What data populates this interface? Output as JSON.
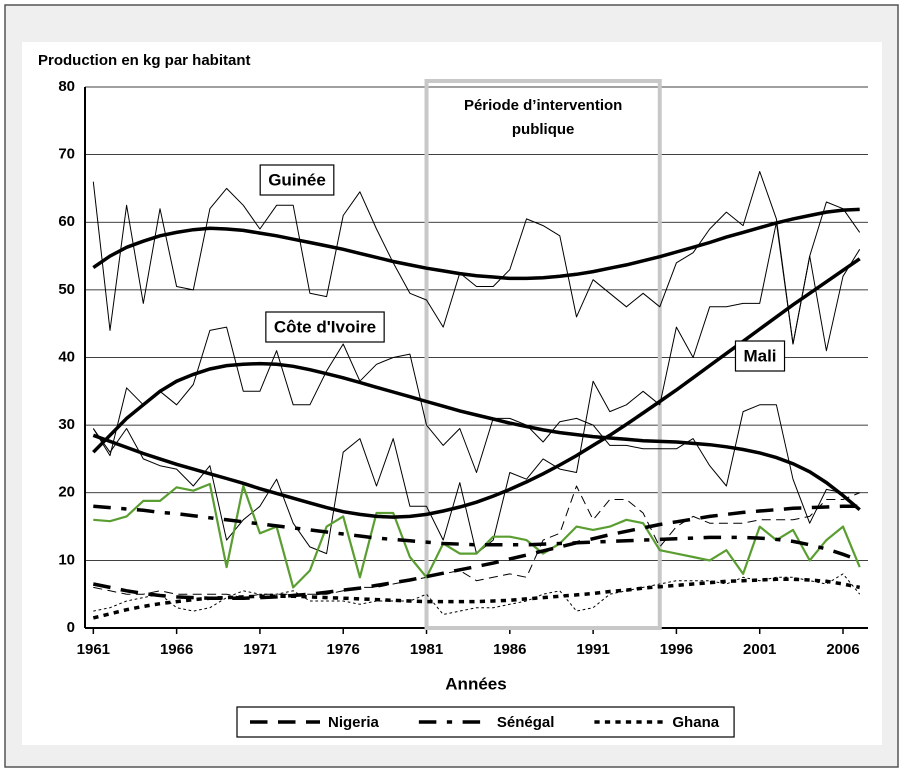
{
  "chart_data": {
    "type": "line",
    "title": "Production en kg par habitant",
    "x_label": "Années",
    "x": [
      1961,
      1962,
      1963,
      1964,
      1965,
      1966,
      1967,
      1968,
      1969,
      1970,
      1971,
      1972,
      1973,
      1974,
      1975,
      1976,
      1977,
      1978,
      1979,
      1980,
      1981,
      1982,
      1983,
      1984,
      1985,
      1986,
      1987,
      1988,
      1989,
      1990,
      1991,
      1992,
      1993,
      1994,
      1995,
      1996,
      1997,
      1998,
      1999,
      2000,
      2001,
      2002,
      2003,
      2004,
      2005,
      2006,
      2007
    ],
    "xlim": [
      1960.5,
      2007.5
    ],
    "xticks": [
      1961,
      1966,
      1971,
      1976,
      1981,
      1986,
      1991,
      1996,
      2001,
      2006
    ],
    "ylim": [
      0,
      80
    ],
    "yticks": [
      0,
      10,
      20,
      30,
      40,
      50,
      60,
      70,
      80
    ],
    "grid": true,
    "period": {
      "start": 1981,
      "end": 1995,
      "label": [
        "Période d’intervention",
        "publique"
      ]
    },
    "series": [
      {
        "name": "Guinée",
        "label_place": "box",
        "color": "#000000",
        "style": "solid",
        "trend_style": "solid",
        "values": [
          66,
          44,
          62.5,
          48,
          62,
          50.5,
          50,
          62,
          65,
          62.5,
          59,
          62.5,
          62.5,
          49.5,
          49,
          61,
          64.5,
          59,
          54,
          49.5,
          48.5,
          44.5,
          52.5,
          50.5,
          50.5,
          53,
          60.5,
          59.5,
          58,
          46,
          51.5,
          49.5,
          47.5,
          49.5,
          47.5,
          54,
          55.5,
          59,
          61.5,
          59.5,
          67.5,
          60.5,
          42,
          55,
          41,
          52,
          56
        ],
        "trend": [
          53.3,
          55,
          56.3,
          57.2,
          58,
          58.5,
          58.9,
          59.1,
          59,
          58.8,
          58.4,
          58,
          57.5,
          57,
          56.5,
          56,
          55.4,
          54.8,
          54.2,
          53.7,
          53.2,
          52.8,
          52.4,
          52.1,
          51.9,
          51.7,
          51.7,
          51.8,
          52,
          52.3,
          52.7,
          53.2,
          53.7,
          54.3,
          54.9,
          55.6,
          56.3,
          57,
          57.8,
          58.5,
          59.2,
          59.9,
          60.5,
          61,
          61.5,
          61.8,
          61.9
        ]
      },
      {
        "name": "Côte d'Ivoire",
        "label_place": "box",
        "color": "#000000",
        "style": "solid",
        "trend_style": "solid",
        "values": [
          29.5,
          25.5,
          35.5,
          33,
          35,
          33,
          36,
          44,
          44.5,
          35,
          35,
          41,
          33,
          33,
          38,
          42,
          36.5,
          39,
          40,
          40.5,
          30,
          27,
          29.5,
          23,
          31,
          31,
          30,
          27.5,
          30.5,
          31,
          30,
          27,
          27,
          26.5,
          26.5,
          26.5,
          28,
          24,
          21,
          32,
          33,
          33,
          22,
          15.5,
          20.5,
          20,
          20
        ],
        "trend": [
          26,
          28.5,
          31,
          33,
          35,
          36.5,
          37.5,
          38.3,
          38.8,
          39,
          39.1,
          39,
          38.7,
          38.2,
          37.6,
          37,
          36.3,
          35.6,
          34.9,
          34.2,
          33.5,
          32.8,
          32.1,
          31.5,
          30.9,
          30.3,
          29.8,
          29.3,
          28.9,
          28.6,
          28.3,
          28.1,
          27.9,
          27.7,
          27.6,
          27.5,
          27.3,
          27.1,
          26.8,
          26.4,
          25.9,
          25.2,
          24.3,
          23.1,
          21.5,
          19.6,
          17.5
        ]
      },
      {
        "name": "Mali",
        "label_place": "box",
        "color": "#000000",
        "style": "solid",
        "trend_style": "solid",
        "values": [
          29.5,
          26,
          29.5,
          25,
          24,
          23.5,
          21,
          24,
          13,
          16,
          18,
          22,
          15.5,
          12,
          11,
          26,
          28,
          21,
          28,
          18,
          18,
          13,
          21.5,
          11,
          13,
          23,
          22,
          25,
          23.5,
          23,
          36.5,
          32,
          33,
          35,
          33,
          44.5,
          40,
          47.5,
          47.5,
          48,
          48,
          60,
          42,
          55,
          63,
          62,
          58.5
        ],
        "trend": [
          28.5,
          27.6,
          26.7,
          25.8,
          25,
          24.2,
          23.5,
          22.8,
          22.1,
          21.4,
          20.6,
          19.9,
          19.2,
          18.5,
          17.8,
          17.2,
          16.8,
          16.5,
          16.4,
          16.5,
          16.8,
          17.3,
          17.9,
          18.6,
          19.5,
          20.5,
          21.6,
          22.8,
          24.1,
          25.5,
          27,
          28.5,
          30.1,
          31.8,
          33.5,
          35.2,
          37,
          38.8,
          40.6,
          42.4,
          44.2,
          46,
          47.8,
          49.5,
          51.2,
          52.9,
          54.6
        ]
      },
      {
        "name": "Nigeria",
        "label_place": "legend",
        "color": "#000000",
        "style": "dashed",
        "trend_style": "dashed",
        "values": [
          6,
          5.5,
          5,
          5,
          5.5,
          5,
          5,
          5,
          5,
          4.5,
          5,
          5,
          5,
          5,
          5,
          5.5,
          6,
          6,
          6.5,
          7,
          7.5,
          8,
          8.5,
          7,
          7.5,
          8,
          7.5,
          13,
          14,
          21,
          16,
          19,
          19,
          17,
          12,
          15,
          16.5,
          15.5,
          15.5,
          15.5,
          16,
          16,
          16,
          16.5,
          19,
          19,
          20
        ],
        "trend": [
          6.5,
          6,
          5.5,
          5.1,
          4.8,
          4.6,
          4.5,
          4.4,
          4.4,
          4.4,
          4.5,
          4.6,
          4.8,
          5,
          5.3,
          5.6,
          5.9,
          6.3,
          6.7,
          7.1,
          7.6,
          8.1,
          8.6,
          9.1,
          9.6,
          10.2,
          10.8,
          11.4,
          12,
          12.6,
          13.2,
          13.8,
          14.3,
          14.8,
          15.3,
          15.7,
          16.1,
          16.5,
          16.8,
          17.1,
          17.3,
          17.5,
          17.7,
          17.8,
          17.9,
          18,
          18
        ]
      },
      {
        "name": "Sénégal",
        "label_place": "legend",
        "color": "#5a9e32",
        "style": "solid",
        "trend_style": "dashdot",
        "values": [
          16,
          15.8,
          16.5,
          18.8,
          18.8,
          20.8,
          20.3,
          21.3,
          9,
          21,
          14,
          15,
          6,
          8.5,
          15,
          16.5,
          7.5,
          17,
          17,
          10.5,
          7.5,
          12.5,
          11,
          11,
          13.5,
          13.5,
          13,
          11,
          12.5,
          15,
          14.5,
          15,
          16,
          15.5,
          11.5,
          11,
          10.5,
          10,
          11.5,
          8,
          15,
          13,
          14.5,
          10,
          13,
          15,
          9
        ],
        "trend": [
          18,
          17.8,
          17.6,
          17.4,
          17.1,
          16.9,
          16.6,
          16.3,
          16,
          15.7,
          15.4,
          15.1,
          14.8,
          14.5,
          14.2,
          13.9,
          13.6,
          13.3,
          13.1,
          12.9,
          12.7,
          12.5,
          12.4,
          12.3,
          12.3,
          12.3,
          12.3,
          12.4,
          12.5,
          12.6,
          12.7,
          12.8,
          12.9,
          13,
          13.1,
          13.2,
          13.3,
          13.4,
          13.4,
          13.4,
          13.3,
          13.1,
          12.8,
          12.3,
          11.7,
          10.9,
          10
        ]
      },
      {
        "name": "Ghana",
        "label_place": "legend",
        "color": "#000000",
        "style": "dotted",
        "trend_style": "dotted",
        "values": [
          2.5,
          3,
          4,
          4.5,
          5,
          3,
          2.5,
          3,
          4.5,
          5.5,
          5,
          5,
          5.5,
          4,
          4,
          4,
          3.5,
          4,
          4,
          4,
          5,
          2,
          2.5,
          3,
          3,
          3.5,
          4,
          5,
          5.5,
          2.5,
          3,
          5,
          5.5,
          6,
          6.5,
          7,
          7,
          7,
          6.5,
          7.5,
          7,
          7.5,
          7.5,
          7,
          6.5,
          8,
          5
        ],
        "trend": [
          1.5,
          2.1,
          2.7,
          3.2,
          3.6,
          3.9,
          4.2,
          4.4,
          4.5,
          4.6,
          4.7,
          4.7,
          4.7,
          4.6,
          4.5,
          4.4,
          4.3,
          4.2,
          4.1,
          4,
          3.9,
          3.9,
          3.9,
          3.9,
          4,
          4.1,
          4.3,
          4.5,
          4.7,
          4.9,
          5.1,
          5.4,
          5.6,
          5.9,
          6.1,
          6.3,
          6.5,
          6.7,
          6.9,
          7,
          7.1,
          7.2,
          7.2,
          7.1,
          6.9,
          6.5,
          6
        ]
      }
    ]
  }
}
